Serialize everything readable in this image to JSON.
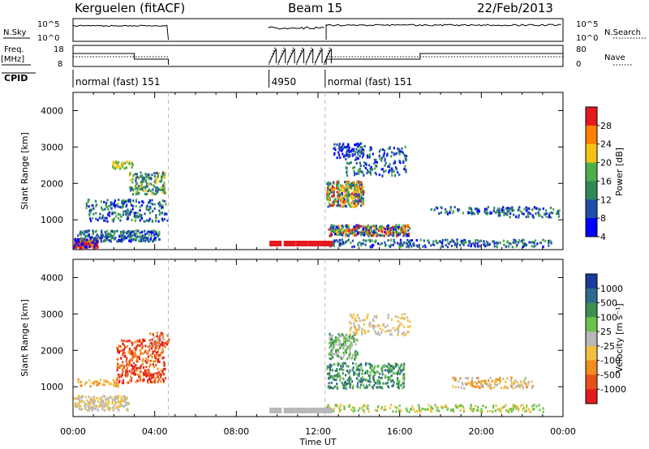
{
  "header": {
    "station": "Kerguelen (fitACF)",
    "beam": "Beam 15",
    "date": "22/Feb/2013"
  },
  "params": {
    "nsky_label": "N.Sky",
    "nsky_ticks": [
      "10^5",
      "10^0"
    ],
    "nsearch_label": "N.Search",
    "nsearch_ticks": [
      "10^5",
      "10^0"
    ],
    "freq_label_1": "Freq.",
    "freq_label_2": "[MHz]",
    "freq_ticks": [
      "18",
      "8"
    ],
    "nave_label": "Nave",
    "nave_ticks": [
      "80",
      "0"
    ],
    "cpid_label": "CPID",
    "cpid_segments": [
      {
        "label": "normal (fast) 151",
        "start_h": 0.0,
        "end_h": 4.67
      },
      {
        "label": "4950",
        "start_h": 9.6,
        "end_h": 12.35
      },
      {
        "label": "normal (fast) 151",
        "start_h": 12.35,
        "end_h": 24.0
      }
    ]
  },
  "chart_data": [
    {
      "type": "heatmap",
      "title": "",
      "ylabel": "Slant Range [km]",
      "xlim": [
        0,
        24
      ],
      "ylim": [
        180,
        4500
      ],
      "yticks": [
        "1000",
        "2000",
        "3000",
        "4000"
      ],
      "colorbar": {
        "label": "Power [dB]",
        "ticks": [
          "28",
          "24",
          "20",
          "16",
          "12",
          "8",
          "4"
        ],
        "colors": [
          "#e41a1c",
          "#ff7f00",
          "#f2c314",
          "#4daf4a",
          "#2e8b57",
          "#1f4fa8",
          "#0000ff"
        ]
      },
      "gaps": [
        [
          4.67,
          9.6
        ],
        [
          12.35,
          12.4
        ]
      ],
      "ground_flag_h": [
        9.7,
        10.4,
        11.0,
        11.6,
        12.2
      ]
    },
    {
      "type": "heatmap",
      "title": "",
      "ylabel": "Slant Range [km]",
      "xlabel": "Time UT",
      "xlim": [
        0,
        24
      ],
      "ylim": [
        180,
        4500
      ],
      "yticks": [
        "1000",
        "2000",
        "3000",
        "4000"
      ],
      "xticks": [
        "00:00",
        "04:00",
        "08:00",
        "12:00",
        "16:00",
        "20:00",
        "00:00"
      ],
      "colorbar": {
        "label": "Velocity [m s⁻¹]",
        "ticks": [
          "1000",
          "500",
          "100",
          "25",
          "-25",
          "-100",
          "-500",
          "-1000"
        ],
        "colors": [
          "#1a3a9c",
          "#2e6b8f",
          "#3a8f4f",
          "#6bc24a",
          "#b8b8b8",
          "#f2c040",
          "#f08c20",
          "#e8501a",
          "#e41a1c"
        ]
      }
    }
  ]
}
